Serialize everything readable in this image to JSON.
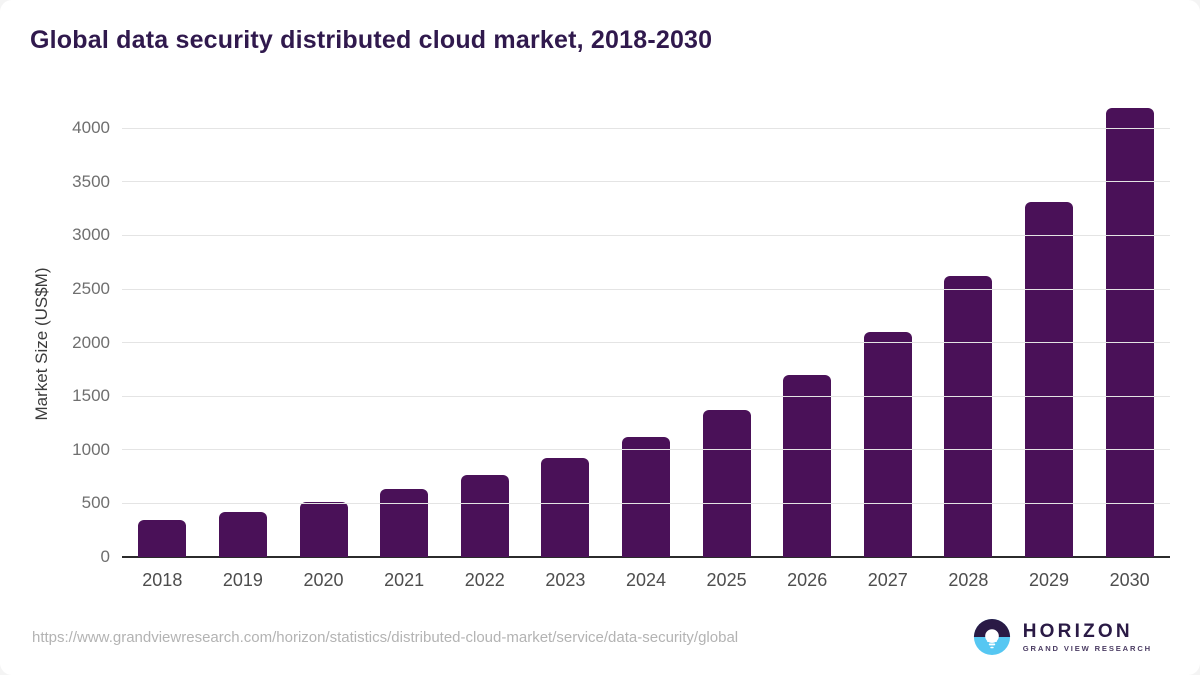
{
  "page": {
    "title": "Global data security distributed cloud market, 2018-2030"
  },
  "chart_data": {
    "type": "bar",
    "title": "Global data security distributed cloud market, 2018-2030",
    "categories": [
      "2018",
      "2019",
      "2020",
      "2021",
      "2022",
      "2023",
      "2024",
      "2025",
      "2026",
      "2027",
      "2028",
      "2029",
      "2030"
    ],
    "values": [
      345,
      420,
      515,
      635,
      765,
      925,
      1120,
      1375,
      1700,
      2100,
      2620,
      3315,
      4190
    ],
    "xlabel": "",
    "ylabel": "Market Size (US$M)",
    "ylim": [
      0,
      4000
    ],
    "yticks": [
      0,
      500,
      1000,
      1500,
      2000,
      2500,
      3000,
      3500,
      4000
    ],
    "grid": "horizontal",
    "legend_position": "none",
    "bar_color": "#4a1158"
  },
  "footer": {
    "source_url": "https://www.grandviewresearch.com/horizon/statistics/distributed-cloud-market/service/data-security/global",
    "logo_title": "HORIZON",
    "logo_subtitle": "GRAND VIEW RESEARCH"
  },
  "colors": {
    "title_text": "#30194d",
    "bar": "#4a1158",
    "gridline": "#e4e4e4",
    "axis_line": "#2b2b2b",
    "y_tick_label": "#6f6f6f",
    "x_label": "#4d4d4d",
    "source_text": "#b3b3b3",
    "logo_dark": "#2a1a45",
    "logo_blue": "#56c7f2"
  }
}
